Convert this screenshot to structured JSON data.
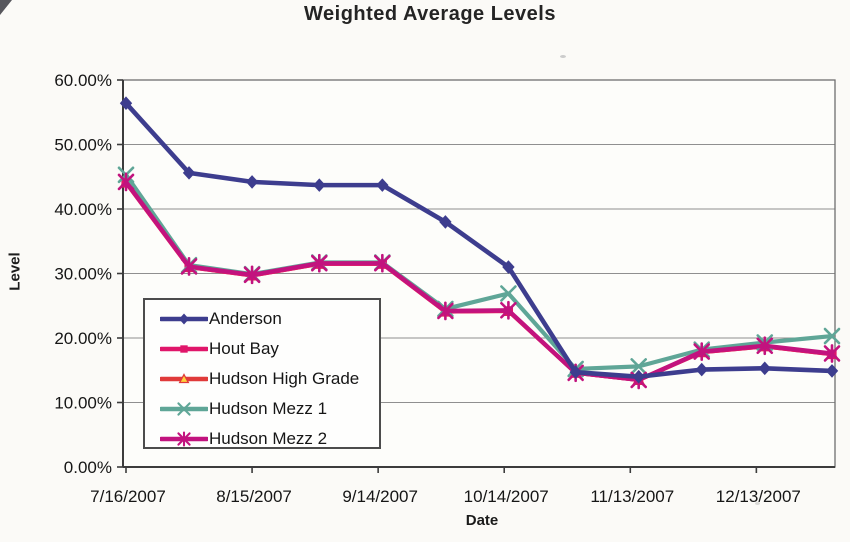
{
  "title": "Weighted Average Levels",
  "chart_data": {
    "type": "line",
    "title": "Weighted Average Levels",
    "xlabel": "Date",
    "ylabel": "Level",
    "ylim": [
      0,
      60
    ],
    "grid": "horizontal",
    "grid_color": "#8f8f8f",
    "axis_color": "#3c3c3c",
    "border_color": "#6f6f6f",
    "plot_fill": "#fdfdfa",
    "y_tick_values": [
      0,
      10,
      20,
      30,
      40,
      50,
      60
    ],
    "y_tick_labels": [
      "0.00%",
      "10.00%",
      "20.00%",
      "30.00%",
      "40.00%",
      "50.00%",
      "60.00%"
    ],
    "x_tick_labels": [
      "7/16/2007",
      "8/15/2007",
      "9/14/2007",
      "10/14/2007",
      "11/13/2007",
      "12/13/2007"
    ],
    "x_tick_day_offsets": [
      0,
      30,
      60,
      90,
      120,
      150
    ],
    "point_day_offsets": [
      0,
      15,
      30,
      46,
      61,
      76,
      91,
      107,
      122,
      137,
      152,
      168
    ],
    "legend_position": "inside-lower-left",
    "series": [
      {
        "name": "Anderson",
        "color": "#3d3d8e",
        "marker": "diamond",
        "values": [
          56.4,
          45.6,
          44.2,
          43.7,
          43.7,
          38.0,
          31.0,
          14.7,
          14.0,
          15.1,
          15.3,
          14.9
        ]
      },
      {
        "name": "Hout Bay",
        "color": "#e0166a",
        "marker": "square",
        "values": [
          44.1,
          31.0,
          29.7,
          31.5,
          31.5,
          24.1,
          24.2,
          14.6,
          13.5,
          17.8,
          18.7,
          17.5
        ]
      },
      {
        "name": "Hudson High Grade",
        "color": "#e03a3a",
        "marker": "triangle",
        "marker_fill": "#ffd23b",
        "values": [
          44.1,
          31.0,
          29.7,
          31.5,
          31.5,
          24.1,
          24.2,
          14.6,
          13.5,
          17.8,
          18.7,
          17.5
        ]
      },
      {
        "name": "Hudson Mezz 1",
        "color": "#5fa697",
        "marker": "x",
        "values": [
          45.3,
          31.3,
          29.9,
          31.7,
          31.7,
          24.5,
          26.9,
          15.2,
          15.6,
          18.2,
          19.3,
          20.3
        ]
      },
      {
        "name": "Hudson Mezz 2",
        "color": "#c2137e",
        "marker": "asterisk",
        "values": [
          44.2,
          31.1,
          29.8,
          31.6,
          31.6,
          24.2,
          24.3,
          14.6,
          13.5,
          17.9,
          18.8,
          17.6
        ]
      }
    ],
    "draw_order": [
      "Hudson High Grade",
      "Hout Bay",
      "Hudson Mezz 1",
      "Hudson Mezz 2",
      "Anderson"
    ]
  }
}
